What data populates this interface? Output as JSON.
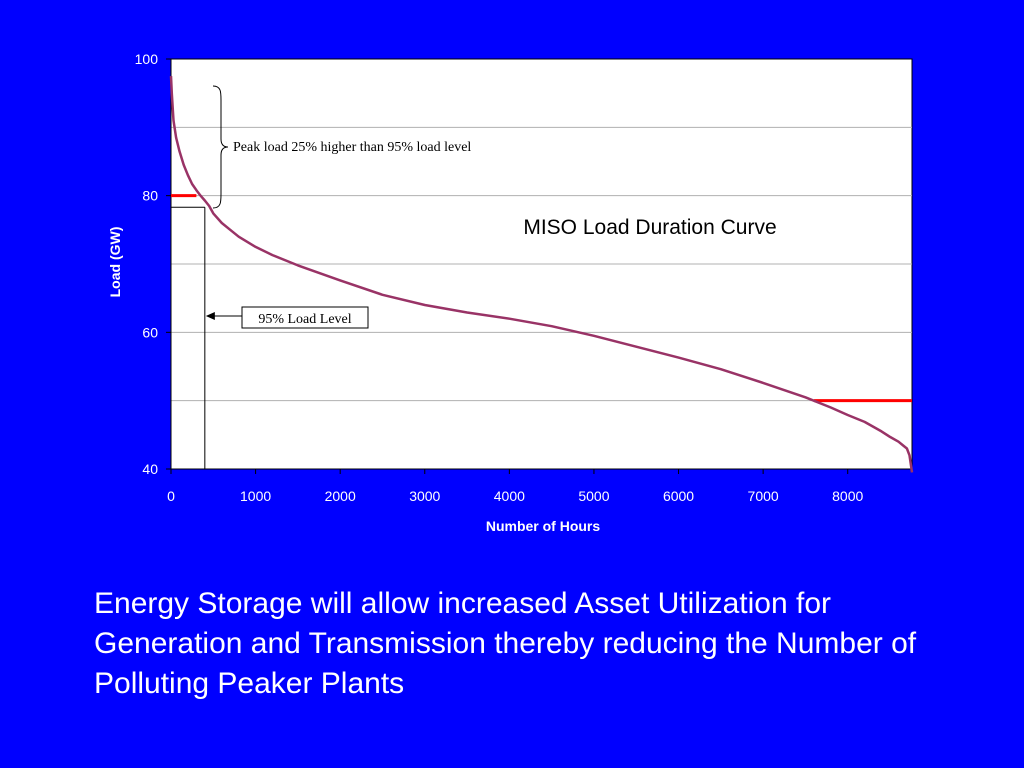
{
  "chart_data": {
    "type": "line",
    "title": "MISO Load Duration Curve",
    "xlabel": "Number of Hours",
    "ylabel": "Load (GW)",
    "xlim": [
      0,
      8760
    ],
    "ylim": [
      40,
      100
    ],
    "xticks": [
      0,
      1000,
      2000,
      3000,
      4000,
      5000,
      6000,
      7000,
      8000
    ],
    "yticks": [
      40,
      60,
      80,
      100
    ],
    "grid": "horizontal",
    "series": [
      {
        "x": [
          0,
          10,
          30,
          60,
          100,
          150,
          200,
          250,
          300,
          350,
          400,
          450,
          500,
          600,
          700,
          800,
          1000,
          1200,
          1500,
          2000,
          2500,
          3000,
          3500,
          4000,
          4500,
          5000,
          5500,
          6000,
          6500,
          7000,
          7500,
          7800,
          8000,
          8200,
          8400,
          8500,
          8600,
          8650,
          8700,
          8730,
          8760
        ],
        "y": [
          97.5,
          95,
          91,
          88.5,
          86.5,
          84.5,
          83,
          81.7,
          80.8,
          80,
          79.3,
          78.5,
          77.4,
          76,
          75,
          74,
          72.5,
          71.3,
          69.8,
          67.6,
          65.5,
          64,
          62.9,
          62,
          60.9,
          59.5,
          57.9,
          56.3,
          54.6,
          52.6,
          50.5,
          49,
          47.9,
          46.9,
          45.5,
          44.7,
          44,
          43.5,
          43,
          42,
          39.5
        ],
        "color": "#993366"
      }
    ],
    "reference_lines": [
      {
        "x": [
          0,
          300
        ],
        "y": 80,
        "color": "#FF0000"
      },
      {
        "x": [
          7600,
          8760
        ],
        "y": 50,
        "color": "#FF0000"
      }
    ],
    "markers": {
      "level_95_x": 400,
      "level_95_y": 78.3
    },
    "annotations": {
      "peak": "Peak load 25% higher than 95% load level",
      "level_95": "95% Load Level"
    }
  },
  "caption": "Energy Storage will allow increased Asset Utilization for Generation and Transmission thereby reducing the Number of Polluting Peaker Plants",
  "colors": {
    "background": "#0000FF",
    "plot_area": "#FFFFFF",
    "curve": "#993366",
    "reference": "#FF0000",
    "text": "#FFFFFF",
    "annotation_text": "#000000"
  }
}
